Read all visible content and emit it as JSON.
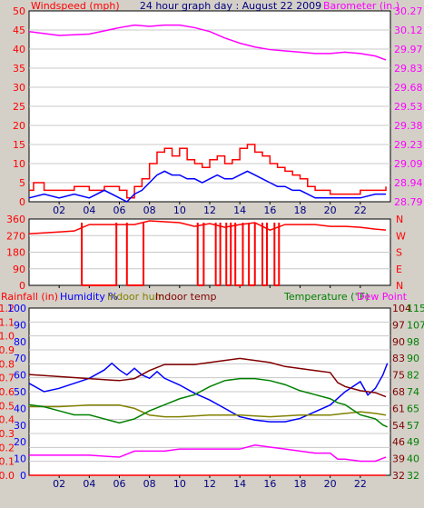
{
  "chart_data": [
    {
      "id": "wind_baro",
      "type": "line",
      "title": "24 hour graph day : August 22 2009",
      "left_axis_label": "Windspeed (mph)",
      "right_axis_label": "Barometer (in.)",
      "left_ylim": [
        0,
        50
      ],
      "left_ticks": [
        "0",
        "5",
        "10",
        "15",
        "20",
        "25",
        "30",
        "35",
        "40",
        "45",
        "50"
      ],
      "right_ylim": [
        28.79,
        30.27
      ],
      "right_ticks": [
        "28.79",
        "28.94",
        "29.09",
        "29.23",
        "29.38",
        "29.53",
        "29.68",
        "29.83",
        "29.97",
        "30.12",
        "30.27"
      ],
      "x_ticks": [
        "02",
        "04",
        "06",
        "08",
        "10",
        "12",
        "14",
        "16",
        "18",
        "20",
        "22"
      ],
      "series": [
        {
          "id": "gust",
          "color": "#ff0000",
          "axis": "left",
          "x": [
            0,
            0.3,
            1,
            2,
            3,
            4,
            5,
            6,
            6.5,
            7,
            7.5,
            8,
            8.5,
            9,
            9.5,
            10,
            10.5,
            11,
            11.5,
            12,
            12.5,
            13,
            13.5,
            14,
            14.5,
            15,
            15.5,
            16,
            16.5,
            17,
            17.5,
            18,
            18.5,
            19,
            20,
            21,
            22,
            23,
            23.7
          ],
          "y": [
            3,
            5,
            3,
            3,
            4,
            3,
            4,
            3,
            1,
            4,
            6,
            10,
            13,
            14,
            12,
            14,
            11,
            10,
            9,
            11,
            12,
            10,
            11,
            14,
            15,
            13,
            12,
            10,
            9,
            8,
            7,
            6,
            4,
            3,
            2,
            2,
            3,
            3,
            4
          ]
        },
        {
          "id": "wind",
          "color": "#0000ff",
          "axis": "left",
          "x": [
            0,
            1,
            2,
            3,
            4,
            5,
            6,
            6.5,
            7,
            7.5,
            8,
            8.5,
            9,
            9.5,
            10,
            10.5,
            11,
            11.5,
            12,
            12.5,
            13,
            13.5,
            14,
            14.5,
            15,
            15.5,
            16,
            16.5,
            17,
            17.5,
            18,
            18.5,
            19,
            20,
            21,
            22,
            23,
            23.7
          ],
          "y": [
            1,
            2,
            1,
            2,
            1,
            3,
            1,
            0,
            2,
            3,
            5,
            7,
            8,
            7,
            7,
            6,
            6,
            5,
            6,
            7,
            6,
            6,
            7,
            8,
            7,
            6,
            5,
            4,
            4,
            3,
            3,
            2,
            1,
            1,
            1,
            1,
            2,
            2
          ]
        },
        {
          "id": "barometer",
          "color": "#ff00ff",
          "axis": "right",
          "x": [
            0,
            2,
            4,
            6,
            7,
            8,
            9,
            10,
            11,
            12,
            13,
            14,
            15,
            16,
            17,
            18,
            19,
            20,
            21,
            22,
            23,
            23.7
          ],
          "y": [
            30.11,
            30.08,
            30.09,
            30.14,
            30.16,
            30.15,
            30.16,
            30.16,
            30.14,
            30.11,
            30.06,
            30.02,
            29.99,
            29.97,
            29.96,
            29.95,
            29.94,
            29.94,
            29.95,
            29.94,
            29.92,
            29.89
          ]
        }
      ]
    },
    {
      "id": "wind_dir",
      "type": "line",
      "ylim": [
        0,
        360
      ],
      "left_ticks": [
        "0",
        "90",
        "180",
        "270",
        "360"
      ],
      "right_ticks": [
        "N",
        "E",
        "S",
        "W",
        "N"
      ],
      "series": [
        {
          "id": "direction",
          "color": "#ff0000",
          "x": [
            0,
            1,
            2,
            3,
            4,
            5,
            6,
            7,
            8,
            9,
            10,
            11,
            12,
            13,
            14,
            15,
            16,
            17,
            18,
            19,
            20,
            21,
            22,
            23,
            23.7
          ],
          "y": [
            280,
            285,
            290,
            295,
            330,
            330,
            330,
            330,
            350,
            345,
            340,
            320,
            335,
            315,
            330,
            340,
            300,
            330,
            330,
            330,
            320,
            320,
            315,
            305,
            300
          ]
        }
      ]
    },
    {
      "id": "temp_hum",
      "type": "line",
      "legend": [
        "Rainfall (in)",
        "Humidity %",
        "Indoor hum",
        "Indoor temp",
        "Temperature (°F)",
        "Dew Point"
      ],
      "rain_ticks": [
        "0.0",
        "0.1",
        "0.2",
        "0.3",
        "0.4",
        "0.5",
        "0.6",
        "0.7",
        "0.8",
        "0.9",
        "1.0",
        "1.1",
        "1.2"
      ],
      "humidity_ticks": [
        "0",
        "10",
        "20",
        "30",
        "40",
        "50",
        "60",
        "70",
        "80",
        "90",
        "100"
      ],
      "humidity_ylim": [
        0,
        100
      ],
      "temp_f_ticks": [
        "32",
        "40",
        "49",
        "57",
        "65",
        "74",
        "82",
        "90",
        "98",
        "107",
        "115"
      ],
      "temp_c_ticks": [
        "32",
        "39",
        "46",
        "54",
        "61",
        "68",
        "75",
        "83",
        "90",
        "97",
        "104"
      ],
      "temp_ylim": [
        32,
        115
      ],
      "series": [
        {
          "id": "rain",
          "color": "#ff0000",
          "axis": "humidity",
          "x": [
            0,
            23.7
          ],
          "y": [
            0,
            0
          ]
        },
        {
          "id": "humidity",
          "color": "#0000ff",
          "axis": "humidity",
          "x": [
            0,
            1,
            2,
            3,
            4,
            5,
            5.5,
            6,
            6.5,
            7,
            7.5,
            8,
            8.5,
            9,
            10,
            11,
            12,
            13,
            14,
            15,
            16,
            17,
            18,
            19,
            20,
            21,
            22,
            22.5,
            23,
            23.5,
            23.8
          ],
          "y": [
            55,
            50,
            52,
            55,
            58,
            63,
            67,
            63,
            60,
            64,
            60,
            58,
            62,
            58,
            54,
            49,
            45,
            40,
            35,
            33,
            32,
            32,
            34,
            38,
            42,
            50,
            56,
            48,
            52,
            60,
            67
          ]
        },
        {
          "id": "indoor_hum",
          "color": "#808000",
          "axis": "humidity",
          "x": [
            0,
            2,
            4,
            6,
            7,
            8,
            9,
            10,
            12,
            14,
            16,
            18,
            20,
            21,
            22,
            23,
            23.7
          ],
          "y": [
            41,
            41,
            42,
            42,
            40,
            36,
            35,
            35,
            36,
            36,
            35,
            36,
            36,
            37,
            38,
            37,
            36
          ]
        },
        {
          "id": "indoor_temp",
          "color": "#800000",
          "axis": "temp",
          "x": [
            0,
            2,
            4,
            6,
            7,
            8,
            9,
            10,
            11,
            12,
            13,
            14,
            15,
            16,
            17,
            18,
            19,
            20,
            20.5,
            21,
            22,
            23,
            23.7
          ],
          "y": [
            82,
            81,
            80,
            79,
            80,
            84,
            87,
            87,
            87,
            88,
            89,
            90,
            89,
            88,
            86,
            85,
            84,
            83,
            78,
            76,
            74,
            73,
            71
          ]
        },
        {
          "id": "temperature",
          "color": "#008000",
          "axis": "temp",
          "x": [
            0,
            1,
            2,
            3,
            4,
            5,
            6,
            7,
            8,
            9,
            10,
            11,
            12,
            13,
            14,
            15,
            16,
            17,
            18,
            19,
            20,
            20.5,
            21,
            22,
            23,
            23.5,
            23.8
          ],
          "y": [
            67,
            66,
            64,
            62,
            62,
            60,
            58,
            60,
            64,
            67,
            70,
            72,
            76,
            79,
            80,
            80,
            79,
            77,
            74,
            72,
            70,
            68,
            67,
            62,
            60,
            57,
            56
          ]
        },
        {
          "id": "dew_point",
          "color": "#ff00ff",
          "axis": "temp",
          "x": [
            0,
            2,
            4,
            6,
            7,
            8,
            9,
            10,
            12,
            14,
            15,
            16,
            17,
            18,
            19,
            20,
            20.5,
            21,
            22,
            23,
            23.7
          ],
          "y": [
            42,
            42,
            42,
            41,
            44,
            44,
            44,
            45,
            45,
            45,
            47,
            46,
            45,
            44,
            43,
            43,
            40,
            40,
            39,
            39,
            41
          ]
        }
      ]
    }
  ]
}
